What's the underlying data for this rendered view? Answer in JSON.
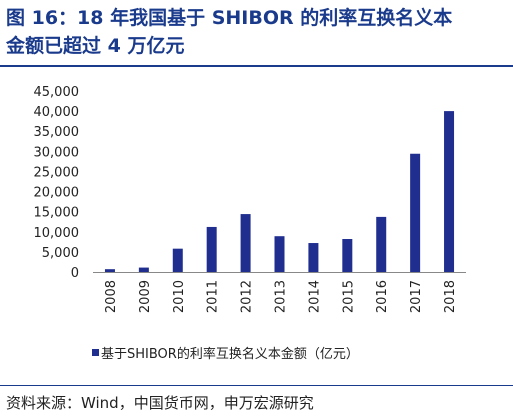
{
  "title_line1": "图 16：18 年我国基于 SHIBOR 的利率互换名义本",
  "title_line2": "金额已超过 4 万亿元",
  "source": "资料来源：Wind，中国货币网，申万宏源研究",
  "colors": {
    "bar": "#1f2e8f",
    "title": "#1a3a8c"
  },
  "chart_data": {
    "type": "bar",
    "categories": [
      "2008",
      "2009",
      "2010",
      "2011",
      "2012",
      "2013",
      "2014",
      "2015",
      "2016",
      "2017",
      "2018"
    ],
    "series": [
      {
        "name": "基于SHIBOR的利率互换名义本金额（亿元）",
        "values": [
          700,
          1100,
          5800,
          11200,
          14400,
          8900,
          7200,
          8200,
          13700,
          29400,
          40000
        ]
      }
    ],
    "yticks": [
      "0",
      "5,000",
      "10,000",
      "15,000",
      "20,000",
      "25,000",
      "30,000",
      "35,000",
      "40,000",
      "45,000"
    ],
    "ylim": [
      0,
      45000
    ],
    "grid": false,
    "legend": "bottom"
  }
}
